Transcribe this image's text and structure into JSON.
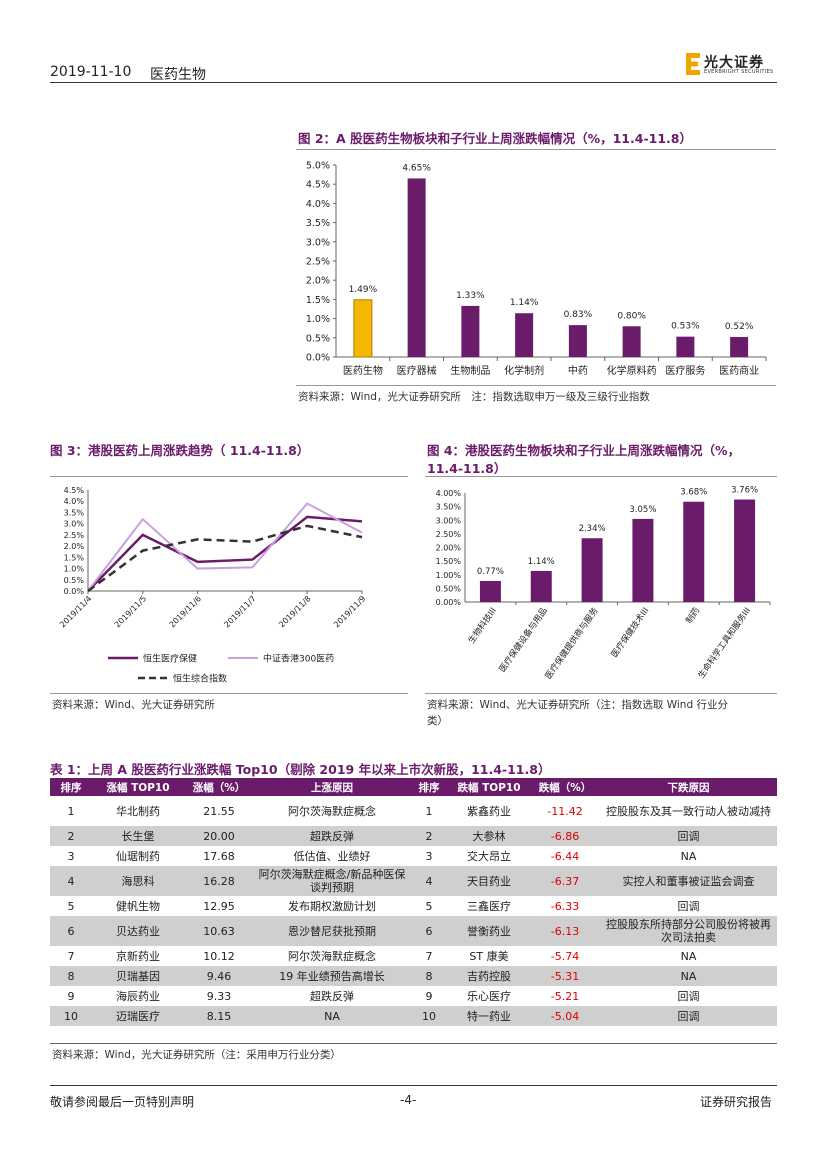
{
  "header": {
    "date": "2019-11-10",
    "sector": "医药生物",
    "logo_cn": "光大证券",
    "logo_en": "EVERBRIGHT SECURITIES",
    "brand_color": "#6a1b6a"
  },
  "fig2": {
    "title": "图 2：A 股医药生物板块和子行业上周涨跌幅情况（%，11.4-11.8）",
    "source": "资料来源：Wind，光大证券研究所　注：指数选取申万一级及三级行业指数",
    "chart_data": {
      "type": "bar",
      "categories": [
        "医药生物",
        "医疗器械",
        "生物制品",
        "化学制剂",
        "中药",
        "化学原料药",
        "医疗服务",
        "医药商业"
      ],
      "values": [
        1.49,
        4.65,
        1.33,
        1.14,
        0.83,
        0.8,
        0.53,
        0.52
      ],
      "data_labels": [
        "1.49%",
        "4.65%",
        "1.33%",
        "1.14%",
        "0.83%",
        "0.80%",
        "0.53%",
        "0.52%"
      ],
      "yticks": [
        "0.0%",
        "0.5%",
        "1.0%",
        "1.5%",
        "2.0%",
        "2.5%",
        "3.0%",
        "3.5%",
        "4.0%",
        "4.5%",
        "5.0%"
      ],
      "ylim": [
        0,
        5.0
      ],
      "highlight_color": "#f5b800",
      "bar_color": "#6a1b6a"
    }
  },
  "fig3": {
    "title": "图 3：港股医药上周涨跌趋势（ 11.4-11.8）",
    "source": "资料来源：Wind、光大证券研究所",
    "chart_data": {
      "type": "line",
      "x": [
        "2019/11/4",
        "2019/11/5",
        "2019/11/6",
        "2019/11/7",
        "2019/11/8",
        "2019/11/9"
      ],
      "yticks": [
        "0.0%",
        "0.5%",
        "1.0%",
        "1.5%",
        "2.0%",
        "2.5%",
        "3.0%",
        "3.5%",
        "4.0%",
        "4.5%"
      ],
      "ylim": [
        0,
        4.5
      ],
      "series": [
        {
          "name": "恒生医疗保健",
          "values": [
            0,
            2.5,
            1.3,
            1.4,
            3.3,
            3.1
          ],
          "color": "#6a1b6a"
        },
        {
          "name": "中证香港300医药",
          "values": [
            0,
            3.2,
            1.0,
            1.05,
            3.9,
            2.6
          ],
          "color": "#c9a0dc"
        },
        {
          "name": "恒生综合指数",
          "values": [
            0,
            1.8,
            2.3,
            2.2,
            2.9,
            2.4
          ],
          "color": "#333333"
        }
      ]
    }
  },
  "fig4": {
    "title": "图 4：港股医药生物板块和子行业上周涨跌幅情况（%，",
    "title2": "11.4-11.8）",
    "source": "资料来源：Wind、光大证券研究所（注：指数选取 Wind 行业分",
    "source2": "类）",
    "chart_data": {
      "type": "bar",
      "categories": [
        "生物科技III",
        "医疗保健设备与用品",
        "医疗保健提供商与服务",
        "医疗保健技术III",
        "制药",
        "生命科学工具和服务III"
      ],
      "values": [
        0.77,
        1.14,
        2.34,
        3.05,
        3.68,
        3.76
      ],
      "data_labels": [
        "0.77%",
        "1.14%",
        "2.34%",
        "3.05%",
        "3.68%",
        "3.76%"
      ],
      "yticks": [
        "0.00%",
        "0.50%",
        "1.00%",
        "1.50%",
        "2.00%",
        "2.50%",
        "3.00%",
        "3.50%",
        "4.00%"
      ],
      "ylim": [
        0,
        4.0
      ],
      "bar_color": "#6a1b6a"
    }
  },
  "table1": {
    "title": "表 1：上周 A 股医药行业涨跌幅 Top10（剔除 2019 年以来上市次新股，11.4-11.8）",
    "headers": [
      "排序",
      "涨幅 TOP10",
      "涨幅（%）",
      "上涨原因",
      "排序",
      "跌幅 TOP10",
      "跌幅（%）",
      "下跌原因"
    ],
    "rows": [
      [
        "1",
        "华北制药",
        "21.55",
        "阿尔茨海默症概念",
        "1",
        "紫鑫药业",
        "-11.42",
        "控股股东及其一致行动人被动减持"
      ],
      [
        "2",
        "长生堡",
        "20.00",
        "超跌反弹",
        "2",
        "大参林",
        "-6.86",
        "回调"
      ],
      [
        "3",
        "仙琚制药",
        "17.68",
        "低估值、业绩好",
        "3",
        "交大昂立",
        "-6.44",
        "NA"
      ],
      [
        "4",
        "海思科",
        "16.28",
        "阿尔茨海默症概念/新品种医保谈判预期",
        "4",
        "天目药业",
        "-6.37",
        "实控人和董事被证监会调查"
      ],
      [
        "5",
        "健帆生物",
        "12.95",
        "发布期权激励计划",
        "5",
        "三鑫医疗",
        "-6.33",
        "回调"
      ],
      [
        "6",
        "贝达药业",
        "10.63",
        "恩沙替尼获批预期",
        "6",
        "誉衡药业",
        "-6.13",
        "控股股东所持部分公司股份将被再次司法拍卖"
      ],
      [
        "7",
        "京新药业",
        "10.12",
        "阿尔茨海默症概念",
        "7",
        "ST 康美",
        "-5.74",
        "NA"
      ],
      [
        "8",
        "贝瑞基因",
        "9.46",
        "19 年业绩预告高增长",
        "8",
        "吉药控股",
        "-5.31",
        "NA"
      ],
      [
        "9",
        "海辰药业",
        "9.33",
        "超跌反弹",
        "9",
        "乐心医疗",
        "-5.21",
        "回调"
      ],
      [
        "10",
        "迈瑞医疗",
        "8.15",
        "NA",
        "10",
        "特一药业",
        "-5.04",
        "回调"
      ]
    ],
    "source": "资料来源：Wind，光大证券研究所（注：采用申万行业分类）"
  },
  "footer": {
    "left": "敬请参阅最后一页特别声明",
    "page": "-4-",
    "right": "证券研究报告"
  }
}
